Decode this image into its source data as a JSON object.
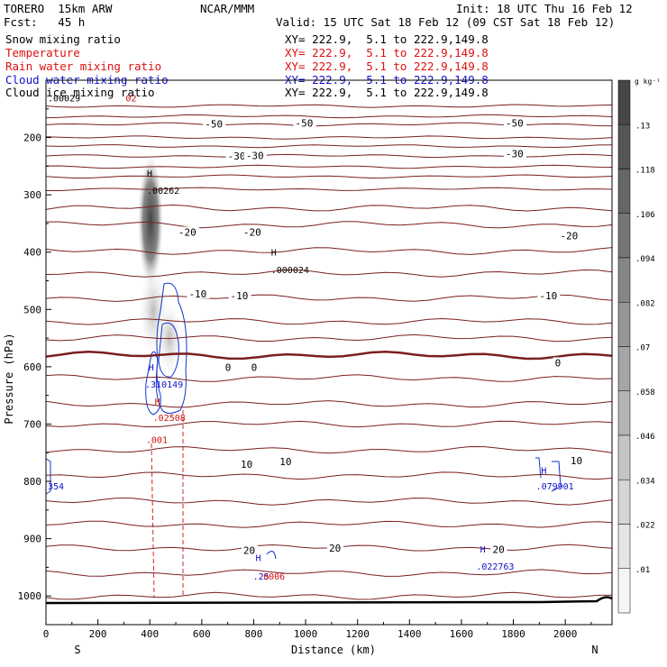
{
  "header": {
    "model": "TORERO  15km ARW",
    "org": "NCAR/MMM",
    "init": "Init: 18 UTC Thu 16 Feb 12",
    "fcst": "Fcst:   45 h",
    "valid": "Valid: 15 UTC Sat 18 Feb 12 (09 CST Sat 18 Feb 12)",
    "legend": [
      {
        "name": "Snow mixing ratio",
        "xs": "XY= 222.9,  5.1 to 222.9,149.8",
        "color": "#000000"
      },
      {
        "name": "Temperature",
        "xs": "XY= 222.9,  5.1 to 222.9,149.8",
        "color": "#cc1111"
      },
      {
        "name": "Rain water mixing ratio",
        "xs": "XY= 222.9,  5.1 to 222.9,149.8",
        "color": "#cc1111"
      },
      {
        "name": "Cloud water mixing ratio",
        "xs": "XY= 222.9,  5.1 to 222.9,149.8",
        "color": "#1111cc"
      },
      {
        "name": "Cloud ice mixing ratio",
        "xs": "XY= 222.9,  5.1 to 222.9,149.8",
        "color": "#000000"
      }
    ]
  },
  "chart_data": {
    "type": "cross-section",
    "xlabel": "Distance (km)",
    "ylabel": "Pressure (hPa)",
    "xlim": [
      0,
      2180
    ],
    "ylim": [
      1050,
      100
    ],
    "x_ticks": [
      0,
      200,
      400,
      600,
      800,
      1000,
      1200,
      1400,
      1600,
      1800,
      2000
    ],
    "y_ticks": [
      200,
      300,
      400,
      500,
      600,
      700,
      800,
      900,
      1000
    ],
    "left_end": "S",
    "right_end": "N",
    "isotherm_levels": [
      145,
      163,
      177,
      200,
      215,
      232,
      251,
      268,
      290,
      323,
      352,
      398,
      437,
      480,
      521,
      550,
      580,
      620,
      665,
      700,
      745,
      790,
      835,
      875,
      916,
      960,
      1000
    ],
    "isotherm_labels": [
      {
        "x": 612,
        "p": 176,
        "text": "-50"
      },
      {
        "x": 960,
        "p": 175,
        "text": "-50"
      },
      {
        "x": 1770,
        "p": 175,
        "text": "-50"
      },
      {
        "x": 700,
        "p": 232,
        "text": "-30"
      },
      {
        "x": 770,
        "p": 231,
        "text": "-30"
      },
      {
        "x": 1770,
        "p": 228,
        "text": "-30"
      },
      {
        "x": 510,
        "p": 365,
        "text": "-20"
      },
      {
        "x": 760,
        "p": 365,
        "text": "-20"
      },
      {
        "x": 1980,
        "p": 371,
        "text": "-20"
      },
      {
        "x": 550,
        "p": 473,
        "text": "-10"
      },
      {
        "x": 710,
        "p": 476,
        "text": "-10"
      },
      {
        "x": 1900,
        "p": 476,
        "text": "-10"
      },
      {
        "x": 690,
        "p": 601,
        "text": "0"
      },
      {
        "x": 790,
        "p": 601,
        "text": "0"
      },
      {
        "x": 1960,
        "p": 593,
        "text": "0"
      },
      {
        "x": 750,
        "p": 770,
        "text": "10"
      },
      {
        "x": 900,
        "p": 765,
        "text": "10"
      },
      {
        "x": 2020,
        "p": 764,
        "text": "10"
      },
      {
        "x": 760,
        "p": 920,
        "text": "20"
      },
      {
        "x": 1090,
        "p": 916,
        "text": "20"
      },
      {
        "x": 1720,
        "p": 919,
        "text": "20"
      }
    ],
    "annotations": [
      {
        "x": 382,
        "p": 262,
        "text": "H",
        "color": "#000000"
      },
      {
        "x": 382,
        "p": 292,
        "text": ".00262",
        "color": "#000000"
      },
      {
        "x": 860,
        "p": 400,
        "text": "H",
        "color": "#000000"
      },
      {
        "x": 860,
        "p": 430,
        "text": ".000024",
        "color": "#000000"
      },
      {
        "x": 388,
        "p": 600,
        "text": "H",
        "color": "#1111cc"
      },
      {
        "x": 375,
        "p": 630,
        "text": ".310149",
        "color": "#1111cc"
      },
      {
        "x": 412,
        "p": 660,
        "text": "H",
        "color": "#cc1111"
      },
      {
        "x": 405,
        "p": 688,
        "text": ".02508",
        "color": "#cc1111"
      },
      {
        "x": 378,
        "p": 727,
        "text": ".001",
        "color": "#cc1111"
      },
      {
        "x": 0,
        "p": 808,
        "text": "354",
        "color": "#1111cc"
      },
      {
        "x": 1900,
        "p": 780,
        "text": "H",
        "color": "#1111cc"
      },
      {
        "x": 1880,
        "p": 808,
        "text": ".079901",
        "color": "#1111cc"
      },
      {
        "x": 800,
        "p": 933,
        "text": "H",
        "color": "#1111cc"
      },
      {
        "x": 790,
        "p": 965,
        "text": ".25",
        "color": "#1111cc"
      },
      {
        "x": 830,
        "p": 965,
        "text": "0006",
        "color": "#cc1111"
      },
      {
        "x": 1665,
        "p": 918,
        "text": "H",
        "color": "#1111cc"
      },
      {
        "x": 1650,
        "p": 948,
        "text": ".022763",
        "color": "#1111cc"
      },
      {
        "x": 0,
        "p": 131,
        "text": ".00029",
        "color": "#000000"
      },
      {
        "x": 300,
        "p": 131,
        "text": "02",
        "color": "#cc1111"
      }
    ],
    "colorbar": {
      "units": "g kg⁻¹",
      "labels": [
        ".13",
        ".118",
        ".106",
        ".094",
        ".082",
        ".07",
        ".058",
        ".046",
        ".034",
        ".022",
        ".01"
      ]
    }
  }
}
